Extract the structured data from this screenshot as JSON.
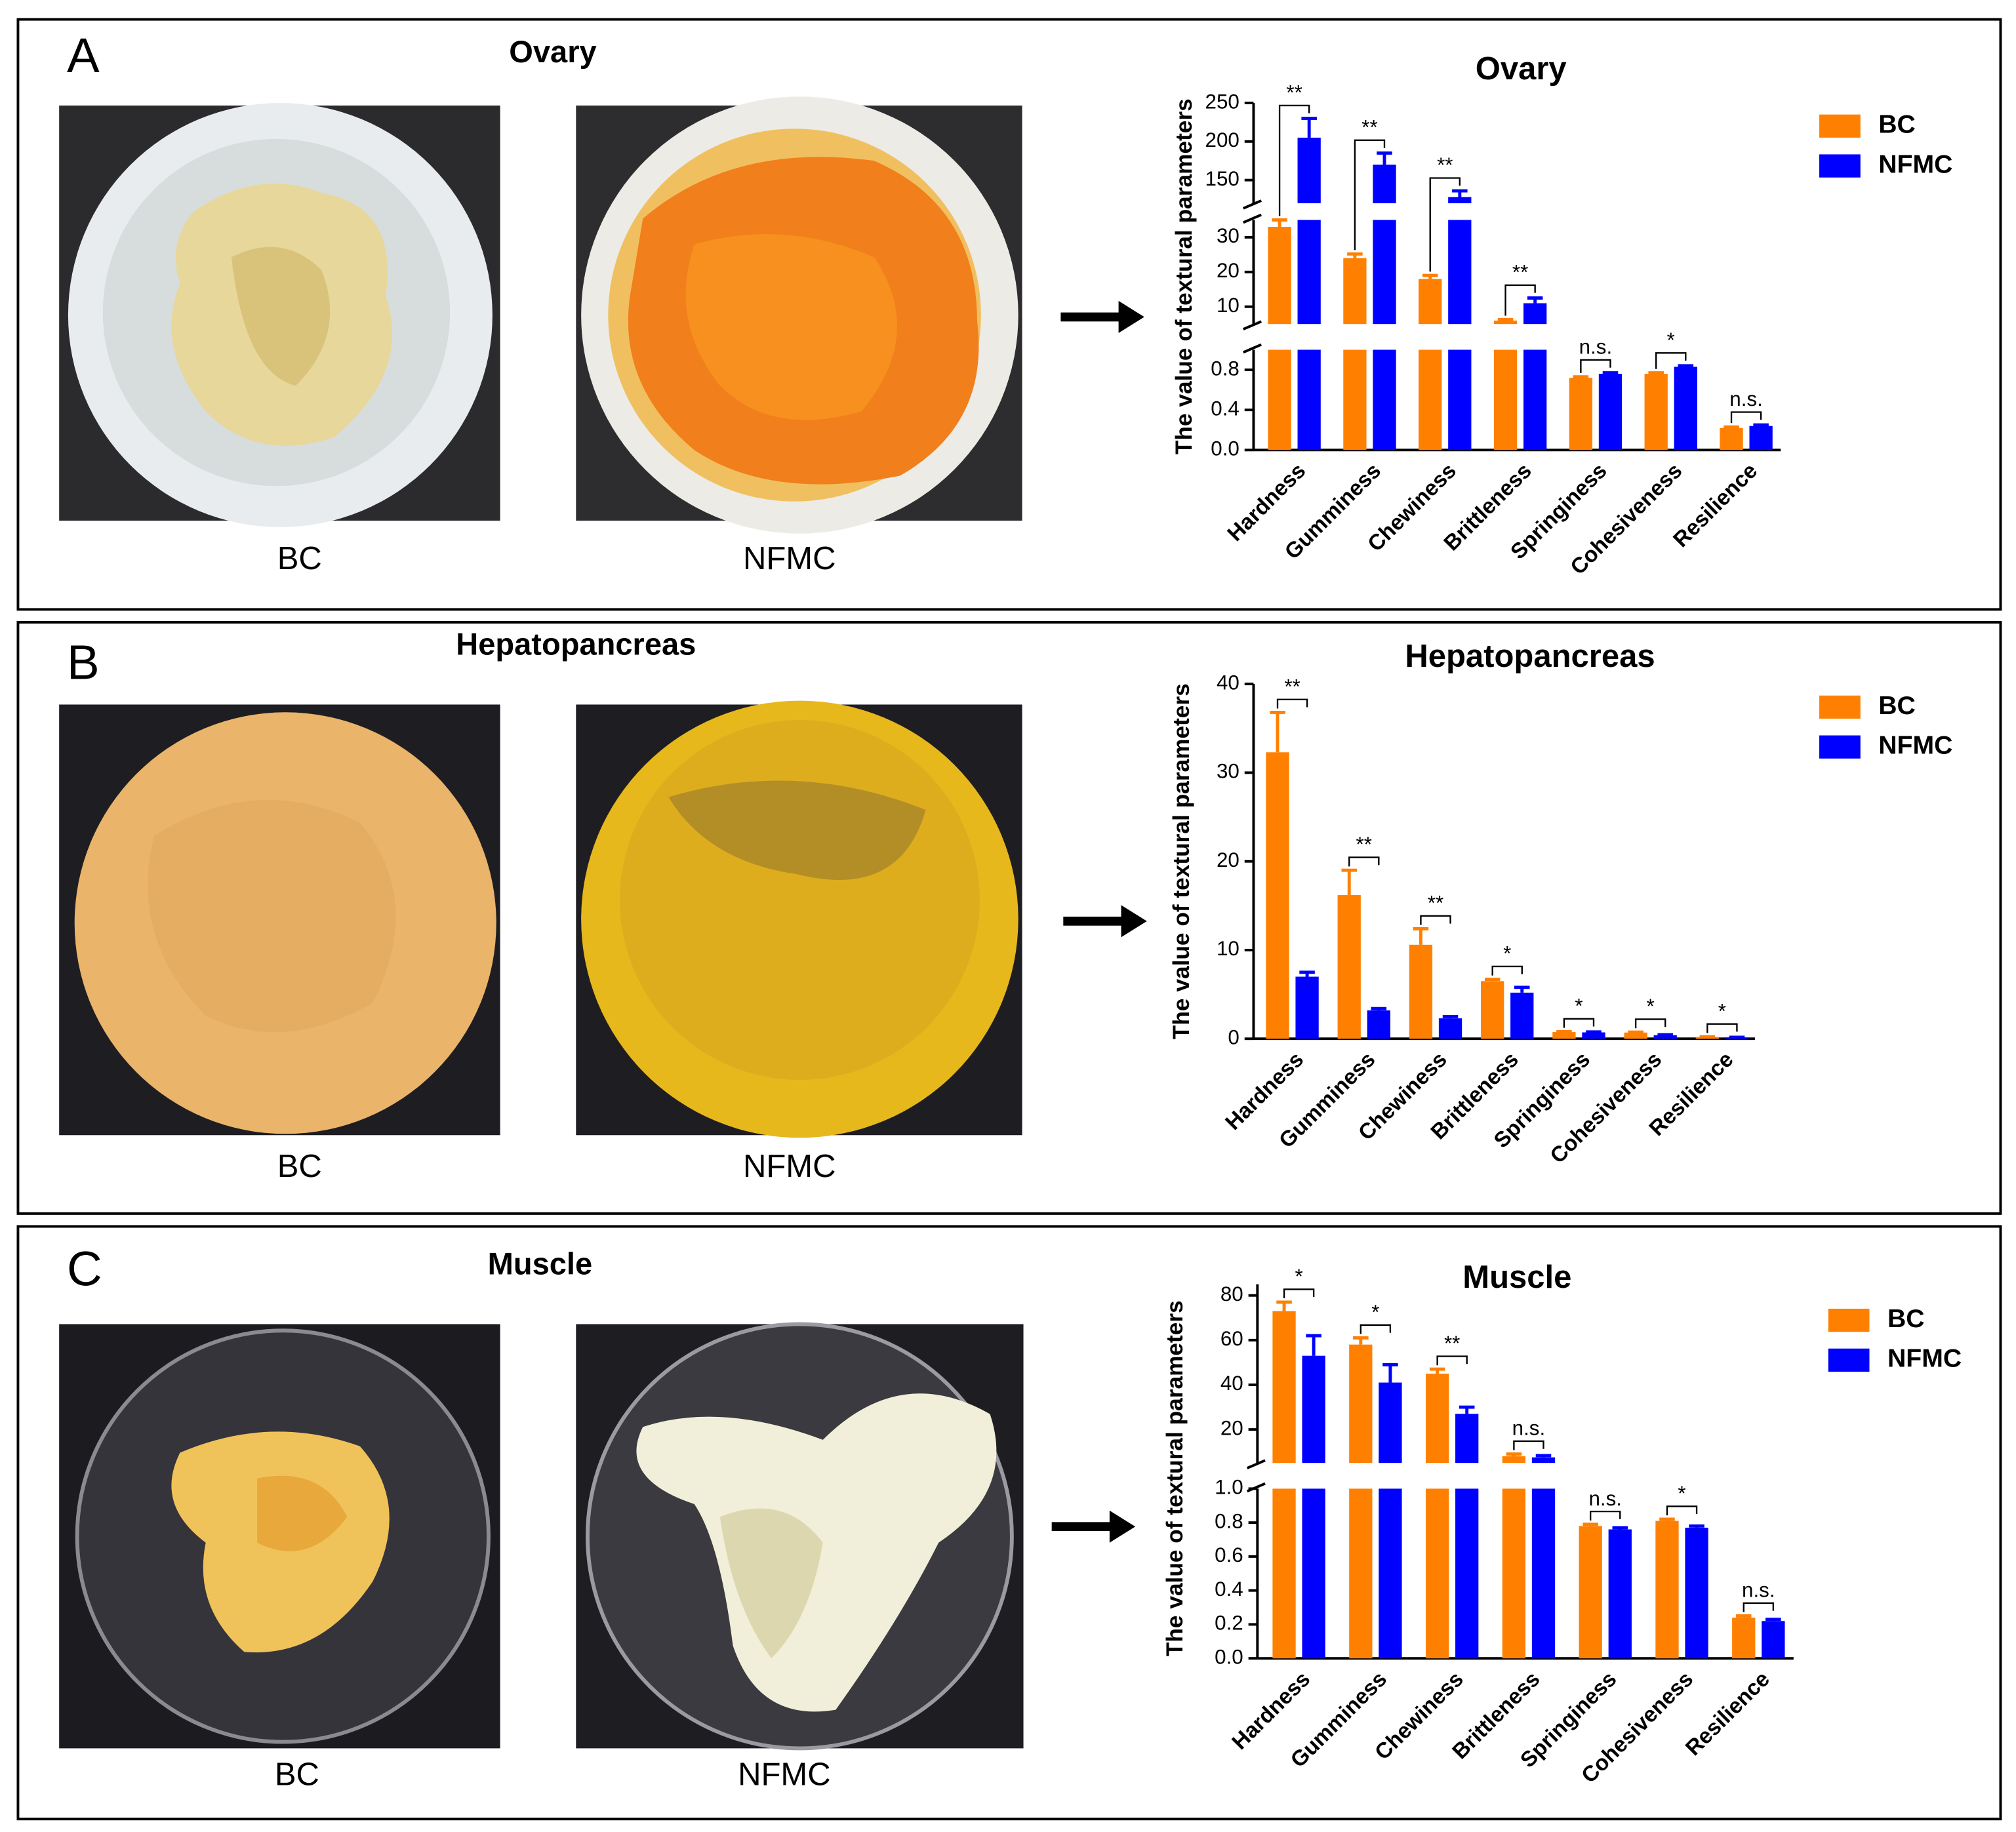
{
  "panels": [
    {
      "label": "A",
      "title": "Ovary",
      "photos": [
        "BC",
        "NFMC"
      ]
    },
    {
      "label": "B",
      "title": "Hepatopancreas",
      "photos": [
        "BC",
        "NFMC"
      ]
    },
    {
      "label": "C",
      "title": "Muscle",
      "photos": [
        "BC",
        "NFMC"
      ]
    }
  ],
  "chart_data": [
    {
      "type": "bar",
      "title": "Ovary",
      "y_label": "The value of textural parameters",
      "categories": [
        "Hardness",
        "Gumminess",
        "Chewiness",
        "Brittleness",
        "Springiness",
        "Cohesiveness",
        "Resilience"
      ],
      "series": [
        {
          "name": "BC",
          "color": "#ff8000",
          "values": [
            33,
            24,
            18,
            6,
            0.72,
            0.76,
            0.22
          ],
          "errors": [
            2,
            1.2,
            1,
            0.3,
            0.01,
            0.01,
            0.01
          ]
        },
        {
          "name": "NFMC",
          "color": "#0000ff",
          "values": [
            205,
            170,
            128,
            11,
            0.76,
            0.83,
            0.24
          ],
          "errors": [
            25,
            15,
            8,
            1.5,
            0.01,
            0.01,
            0.01
          ]
        }
      ],
      "significance": [
        "**",
        "**",
        "**",
        "**",
        "n.s.",
        "*",
        "n.s."
      ],
      "y_segments": [
        {
          "ylim": [
            0,
            1.0
          ],
          "yticks": [
            {
              "value": 0,
              "label": "0.0"
            },
            0.4,
            0.8
          ]
        },
        {
          "ylim": [
            5,
            35
          ],
          "yticks": [
            10,
            20,
            30
          ]
        },
        {
          "ylim": [
            120,
            250
          ],
          "yticks": [
            150,
            200,
            250
          ]
        }
      ],
      "legend": "upper right"
    },
    {
      "type": "bar",
      "title": "Hepatopancreas",
      "y_label": "The value of textural parameters",
      "categories": [
        "Hardness",
        "Gumminess",
        "Chewiness",
        "Brittleness",
        "Springiness",
        "Cohesiveness",
        "Resilience"
      ],
      "series": [
        {
          "name": "BC",
          "color": "#ff8000",
          "values": [
            32.3,
            16.2,
            10.6,
            6.5,
            0.75,
            0.7,
            0.2
          ],
          "errors": [
            4.5,
            2.8,
            1.8,
            0.2,
            0.05,
            0.05,
            0.02
          ]
        },
        {
          "name": "NFMC",
          "color": "#0000ff",
          "values": [
            7,
            3.2,
            2.3,
            5.2,
            0.72,
            0.4,
            0.15
          ],
          "errors": [
            0.5,
            0.2,
            0.2,
            0.6,
            0.05,
            0.05,
            0.02
          ]
        }
      ],
      "significance": [
        "**",
        "**",
        "**",
        "*",
        "*",
        "*",
        "*"
      ],
      "ylim": [
        0,
        40
      ],
      "yticks": [
        0,
        10,
        20,
        30,
        40
      ],
      "legend": "upper right"
    },
    {
      "type": "bar",
      "title": "Muscle",
      "y_label": "The value of textural parameters",
      "categories": [
        "Hardness",
        "Gumminess",
        "Chewiness",
        "Brittleness",
        "Springiness",
        "Cohesiveness",
        "Resilience"
      ],
      "series": [
        {
          "name": "BC",
          "color": "#ff8000",
          "values": [
            73,
            58,
            45,
            8,
            0.78,
            0.81,
            0.24
          ],
          "errors": [
            4,
            3,
            2,
            1,
            0.01,
            0.01,
            0.01
          ]
        },
        {
          "name": "NFMC",
          "color": "#0000ff",
          "values": [
            53,
            41,
            27,
            7.5,
            0.76,
            0.77,
            0.22
          ],
          "errors": [
            9,
            8,
            3,
            0.8,
            0.01,
            0.01,
            0.01
          ]
        }
      ],
      "significance": [
        "*",
        "*",
        "**",
        "n.s.",
        "n.s.",
        "*",
        "n.s."
      ],
      "y_segments": [
        {
          "ylim": [
            0,
            1.0
          ],
          "yticks": [
            {
              "value": 0,
              "label": "0.0"
            },
            0.2,
            0.4,
            0.6,
            0.8,
            {
              "value": 1.0,
              "label": "1.0"
            }
          ]
        },
        {
          "ylim": [
            5,
            85
          ],
          "yticks": [
            20,
            40,
            60,
            80
          ]
        }
      ],
      "legend": "upper right"
    }
  ]
}
